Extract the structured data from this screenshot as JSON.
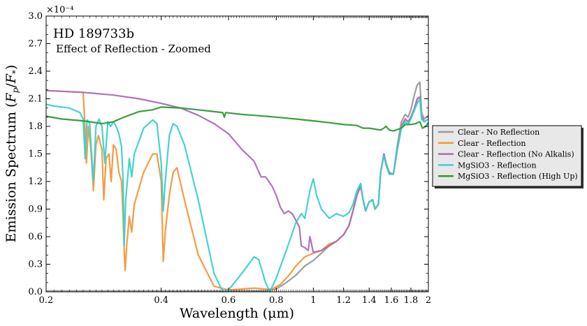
{
  "chart_data": {
    "type": "line",
    "title": "HD 189733b",
    "subtitle": "Effect of Reflection - Zoomed",
    "xlabel": "Wavelength (μm)",
    "ylabel": "Emission Spectrum (F_p/F_*)",
    "y_multiplier_label": "×10⁻⁴",
    "xscale": "log",
    "xlim": [
      0.2,
      2.0
    ],
    "ylim": [
      0.0,
      3.0
    ],
    "x_ticks": [
      0.2,
      0.4,
      0.6,
      0.8,
      1.0,
      1.2,
      1.4,
      1.6,
      1.8,
      2.0
    ],
    "x_tick_labels": [
      "0.2",
      "0.4",
      "0.6",
      "0.8",
      "1",
      "1.2",
      "1.4",
      "1.6",
      "1.8",
      "2"
    ],
    "y_ticks": [
      0.0,
      0.3,
      0.6,
      0.9,
      1.2,
      1.5,
      1.8,
      2.1,
      2.4,
      2.7,
      3.0
    ],
    "y_tick_labels": [
      "0.0",
      "0.3",
      "0.6",
      "0.9",
      "1.2",
      "1.5",
      "1.8",
      "2.1",
      "2.4",
      "2.7",
      "3.0"
    ],
    "grid": false,
    "legend_position": "outside-right",
    "series": [
      {
        "name": "Clear - No Reflection",
        "color": "#999999",
        "points": [
          [
            0.2,
            0.01
          ],
          [
            0.5,
            0.01
          ],
          [
            0.75,
            0.01
          ],
          [
            0.8,
            0.03
          ],
          [
            0.85,
            0.1
          ],
          [
            0.9,
            0.18
          ],
          [
            0.95,
            0.28
          ],
          [
            1.0,
            0.34
          ],
          [
            1.05,
            0.42
          ],
          [
            1.1,
            0.5
          ],
          [
            1.15,
            0.55
          ],
          [
            1.2,
            0.62
          ],
          [
            1.24,
            0.72
          ],
          [
            1.27,
            0.88
          ],
          [
            1.3,
            1.05
          ],
          [
            1.33,
            1.15
          ],
          [
            1.35,
            1.0
          ],
          [
            1.37,
            0.88
          ],
          [
            1.4,
            0.98
          ],
          [
            1.43,
            1.0
          ],
          [
            1.45,
            0.9
          ],
          [
            1.48,
            0.95
          ],
          [
            1.5,
            1.3
          ],
          [
            1.53,
            1.5
          ],
          [
            1.55,
            1.4
          ],
          [
            1.58,
            1.3
          ],
          [
            1.62,
            1.28
          ],
          [
            1.66,
            1.6
          ],
          [
            1.7,
            1.85
          ],
          [
            1.74,
            1.93
          ],
          [
            1.77,
            1.9
          ],
          [
            1.8,
            1.98
          ],
          [
            1.84,
            2.15
          ],
          [
            1.87,
            2.25
          ],
          [
            1.9,
            2.28
          ],
          [
            1.92,
            1.95
          ],
          [
            1.95,
            1.88
          ],
          [
            2.0,
            1.92
          ]
        ]
      },
      {
        "name": "Clear - Reflection",
        "color": "#f4963a",
        "points": [
          [
            0.2,
            2.19
          ],
          [
            0.25,
            2.17
          ],
          [
            0.252,
            1.9
          ],
          [
            0.255,
            1.4
          ],
          [
            0.258,
            1.8
          ],
          [
            0.262,
            1.55
          ],
          [
            0.266,
            1.1
          ],
          [
            0.27,
            1.6
          ],
          [
            0.274,
            1.7
          ],
          [
            0.28,
            1.55
          ],
          [
            0.283,
            1.0
          ],
          [
            0.287,
            1.45
          ],
          [
            0.292,
            1.5
          ],
          [
            0.296,
            1.2
          ],
          [
            0.3,
            1.6
          ],
          [
            0.305,
            1.55
          ],
          [
            0.31,
            1.3
          ],
          [
            0.315,
            1.2
          ],
          [
            0.318,
            0.8
          ],
          [
            0.32,
            0.45
          ],
          [
            0.322,
            0.23
          ],
          [
            0.325,
            0.5
          ],
          [
            0.33,
            0.82
          ],
          [
            0.335,
            0.65
          ],
          [
            0.34,
            0.95
          ],
          [
            0.36,
            1.3
          ],
          [
            0.38,
            1.5
          ],
          [
            0.39,
            1.5
          ],
          [
            0.4,
            1.2
          ],
          [
            0.405,
            0.33
          ],
          [
            0.41,
            0.65
          ],
          [
            0.42,
            1.05
          ],
          [
            0.43,
            1.3
          ],
          [
            0.44,
            1.35
          ],
          [
            0.46,
            1.0
          ],
          [
            0.5,
            0.4
          ],
          [
            0.55,
            0.06
          ],
          [
            0.6,
            0.02
          ],
          [
            0.65,
            0.03
          ],
          [
            0.7,
            0.04
          ],
          [
            0.75,
            0.03
          ],
          [
            0.78,
            0.03
          ],
          [
            0.82,
            0.08
          ],
          [
            0.86,
            0.17
          ],
          [
            0.9,
            0.28
          ],
          [
            0.95,
            0.38
          ],
          [
            1.0,
            0.42
          ],
          [
            1.05,
            0.45
          ],
          [
            1.1,
            0.52
          ],
          [
            1.15,
            0.55
          ],
          [
            1.2,
            0.62
          ],
          [
            1.24,
            0.72
          ],
          [
            1.27,
            0.88
          ],
          [
            1.3,
            1.05
          ],
          [
            1.33,
            1.15
          ],
          [
            1.35,
            1.0
          ],
          [
            1.37,
            0.88
          ],
          [
            1.4,
            0.98
          ],
          [
            1.43,
            1.0
          ],
          [
            1.45,
            0.9
          ],
          [
            1.48,
            0.95
          ],
          [
            1.5,
            1.3
          ],
          [
            1.53,
            1.5
          ],
          [
            1.55,
            1.4
          ],
          [
            1.58,
            1.28
          ],
          [
            1.62,
            1.28
          ],
          [
            1.66,
            1.55
          ],
          [
            1.7,
            1.8
          ],
          [
            1.74,
            1.88
          ],
          [
            1.77,
            1.85
          ],
          [
            1.8,
            1.9
          ],
          [
            1.84,
            2.0
          ],
          [
            1.87,
            2.1
          ],
          [
            1.9,
            2.12
          ],
          [
            1.92,
            1.9
          ],
          [
            1.95,
            1.85
          ],
          [
            2.0,
            1.88
          ]
        ]
      },
      {
        "name": "Clear - Reflection (No Alkalis)",
        "color": "#a96db8",
        "points": [
          [
            0.2,
            2.19
          ],
          [
            0.25,
            2.17
          ],
          [
            0.3,
            2.14
          ],
          [
            0.35,
            2.1
          ],
          [
            0.4,
            2.05
          ],
          [
            0.45,
            2.0
          ],
          [
            0.5,
            1.92
          ],
          [
            0.55,
            1.83
          ],
          [
            0.6,
            1.72
          ],
          [
            0.65,
            1.55
          ],
          [
            0.7,
            1.42
          ],
          [
            0.73,
            1.25
          ],
          [
            0.75,
            1.25
          ],
          [
            0.78,
            1.15
          ],
          [
            0.8,
            1.05
          ],
          [
            0.82,
            0.92
          ],
          [
            0.84,
            0.85
          ],
          [
            0.86,
            0.88
          ],
          [
            0.88,
            0.85
          ],
          [
            0.9,
            0.78
          ],
          [
            0.92,
            0.7
          ],
          [
            0.93,
            0.5
          ],
          [
            0.95,
            0.48
          ],
          [
            0.97,
            0.45
          ],
          [
            0.98,
            0.6
          ],
          [
            1.0,
            0.43
          ],
          [
            1.05,
            0.45
          ],
          [
            1.1,
            0.5
          ],
          [
            1.15,
            0.55
          ],
          [
            1.2,
            0.62
          ],
          [
            1.24,
            0.72
          ],
          [
            1.27,
            0.88
          ],
          [
            1.3,
            1.05
          ],
          [
            1.33,
            1.15
          ],
          [
            1.35,
            1.0
          ],
          [
            1.37,
            0.88
          ],
          [
            1.4,
            0.98
          ],
          [
            1.43,
            1.0
          ],
          [
            1.45,
            0.9
          ],
          [
            1.48,
            0.95
          ],
          [
            1.5,
            1.3
          ],
          [
            1.53,
            1.5
          ],
          [
            1.55,
            1.4
          ],
          [
            1.58,
            1.28
          ],
          [
            1.62,
            1.28
          ],
          [
            1.66,
            1.55
          ],
          [
            1.7,
            1.8
          ],
          [
            1.74,
            1.88
          ],
          [
            1.77,
            1.85
          ],
          [
            1.8,
            1.9
          ],
          [
            1.84,
            2.0
          ],
          [
            1.87,
            2.1
          ],
          [
            1.9,
            2.12
          ],
          [
            1.92,
            1.9
          ],
          [
            1.95,
            1.85
          ],
          [
            2.0,
            1.88
          ]
        ]
      },
      {
        "name": "MgSiO3 - Reflection",
        "color": "#3ad0d0",
        "points": [
          [
            0.2,
            2.04
          ],
          [
            0.21,
            2.02
          ],
          [
            0.23,
            2.0
          ],
          [
            0.245,
            1.95
          ],
          [
            0.25,
            1.88
          ],
          [
            0.253,
            1.45
          ],
          [
            0.256,
            1.87
          ],
          [
            0.26,
            1.83
          ],
          [
            0.263,
            1.5
          ],
          [
            0.266,
            1.2
          ],
          [
            0.27,
            1.8
          ],
          [
            0.275,
            1.88
          ],
          [
            0.28,
            1.8
          ],
          [
            0.285,
            1.4
          ],
          [
            0.29,
            1.85
          ],
          [
            0.295,
            1.8
          ],
          [
            0.3,
            1.85
          ],
          [
            0.305,
            1.8
          ],
          [
            0.31,
            1.72
          ],
          [
            0.315,
            1.58
          ],
          [
            0.318,
            1.2
          ],
          [
            0.32,
            0.5
          ],
          [
            0.323,
            1.0
          ],
          [
            0.33,
            1.45
          ],
          [
            0.335,
            1.25
          ],
          [
            0.34,
            1.5
          ],
          [
            0.36,
            1.78
          ],
          [
            0.38,
            1.87
          ],
          [
            0.39,
            1.83
          ],
          [
            0.4,
            1.4
          ],
          [
            0.405,
            0.88
          ],
          [
            0.41,
            1.2
          ],
          [
            0.42,
            1.7
          ],
          [
            0.43,
            1.83
          ],
          [
            0.44,
            1.8
          ],
          [
            0.46,
            1.6
          ],
          [
            0.5,
            1.0
          ],
          [
            0.55,
            0.2
          ],
          [
            0.58,
            0.0
          ],
          [
            0.6,
            0.02
          ],
          [
            0.65,
            0.2
          ],
          [
            0.7,
            0.38
          ],
          [
            0.72,
            0.35
          ],
          [
            0.75,
            0.1
          ],
          [
            0.77,
            0.0
          ],
          [
            0.8,
            0.15
          ],
          [
            0.85,
            0.45
          ],
          [
            0.9,
            0.75
          ],
          [
            0.93,
            0.85
          ],
          [
            0.95,
            0.8
          ],
          [
            0.98,
            1.1
          ],
          [
            1.0,
            1.23
          ],
          [
            1.02,
            1.05
          ],
          [
            1.05,
            0.9
          ],
          [
            1.1,
            0.8
          ],
          [
            1.15,
            0.85
          ],
          [
            1.2,
            0.82
          ],
          [
            1.24,
            0.86
          ],
          [
            1.27,
            0.95
          ],
          [
            1.3,
            1.1
          ],
          [
            1.33,
            1.18
          ],
          [
            1.35,
            1.0
          ],
          [
            1.37,
            0.88
          ],
          [
            1.4,
            0.98
          ],
          [
            1.43,
            1.0
          ],
          [
            1.45,
            0.9
          ],
          [
            1.48,
            0.95
          ],
          [
            1.5,
            1.3
          ],
          [
            1.53,
            1.48
          ],
          [
            1.55,
            1.38
          ],
          [
            1.58,
            1.28
          ],
          [
            1.62,
            1.28
          ],
          [
            1.66,
            1.55
          ],
          [
            1.7,
            1.78
          ],
          [
            1.74,
            1.85
          ],
          [
            1.77,
            1.82
          ],
          [
            1.8,
            1.88
          ],
          [
            1.84,
            1.98
          ],
          [
            1.87,
            2.05
          ],
          [
            1.9,
            2.1
          ],
          [
            1.92,
            1.88
          ],
          [
            1.95,
            1.85
          ],
          [
            2.0,
            1.88
          ]
        ]
      },
      {
        "name": "MgSiO3 - Reflection (High Up)",
        "color": "#2e9a35",
        "points": [
          [
            0.2,
            1.91
          ],
          [
            0.22,
            1.88
          ],
          [
            0.25,
            1.86
          ],
          [
            0.28,
            1.83
          ],
          [
            0.3,
            1.85
          ],
          [
            0.32,
            1.9
          ],
          [
            0.35,
            1.96
          ],
          [
            0.38,
            1.98
          ],
          [
            0.4,
            2.01
          ],
          [
            0.45,
            2.0
          ],
          [
            0.5,
            1.98
          ],
          [
            0.55,
            1.96
          ],
          [
            0.58,
            1.95
          ],
          [
            0.585,
            1.9
          ],
          [
            0.59,
            1.95
          ],
          [
            0.65,
            1.93
          ],
          [
            0.7,
            1.92
          ],
          [
            0.8,
            1.9
          ],
          [
            0.9,
            1.88
          ],
          [
            1.0,
            1.86
          ],
          [
            1.1,
            1.84
          ],
          [
            1.2,
            1.82
          ],
          [
            1.3,
            1.81
          ],
          [
            1.35,
            1.78
          ],
          [
            1.4,
            1.78
          ],
          [
            1.45,
            1.77
          ],
          [
            1.5,
            1.76
          ],
          [
            1.53,
            1.78
          ],
          [
            1.55,
            1.8
          ],
          [
            1.58,
            1.76
          ],
          [
            1.62,
            1.75
          ],
          [
            1.7,
            1.78
          ],
          [
            1.74,
            1.82
          ],
          [
            1.8,
            1.82
          ],
          [
            1.85,
            1.83
          ],
          [
            1.9,
            1.85
          ],
          [
            1.93,
            1.78
          ],
          [
            1.97,
            1.8
          ],
          [
            2.0,
            1.84
          ]
        ]
      }
    ]
  }
}
